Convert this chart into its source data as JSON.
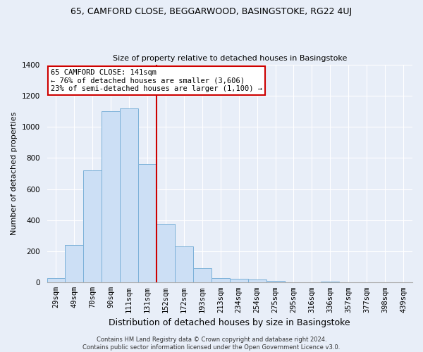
{
  "title_line1": "65, CAMFORD CLOSE, BEGGARWOOD, BASINGSTOKE, RG22 4UJ",
  "title_line2": "Size of property relative to detached houses in Basingstoke",
  "xlabel": "Distribution of detached houses by size in Basingstoke",
  "ylabel": "Number of detached properties",
  "bin_labels": [
    "29sqm",
    "49sqm",
    "70sqm",
    "90sqm",
    "111sqm",
    "131sqm",
    "152sqm",
    "172sqm",
    "193sqm",
    "213sqm",
    "234sqm",
    "254sqm",
    "275sqm",
    "295sqm",
    "316sqm",
    "336sqm",
    "357sqm",
    "377sqm",
    "398sqm",
    "439sqm"
  ],
  "bar_values": [
    30,
    240,
    720,
    1100,
    1120,
    760,
    375,
    230,
    90,
    30,
    25,
    20,
    10,
    0,
    0,
    5,
    0,
    0,
    0,
    0
  ],
  "bar_color": "#ccdff5",
  "bar_edge_color": "#7ab0d8",
  "vline_color": "#cc0000",
  "annotation_text": "65 CAMFORD CLOSE: 141sqm\n← 76% of detached houses are smaller (3,606)\n23% of semi-detached houses are larger (1,100) →",
  "annotation_box_color": "white",
  "annotation_box_edge": "#cc0000",
  "ylim": [
    0,
    1400
  ],
  "yticks": [
    0,
    200,
    400,
    600,
    800,
    1000,
    1200,
    1400
  ],
  "footer_line1": "Contains HM Land Registry data © Crown copyright and database right 2024.",
  "footer_line2": "Contains public sector information licensed under the Open Government Licence v3.0.",
  "bg_color": "#e8eef8",
  "grid_color": "#ffffff",
  "title1_fontsize": 9,
  "title2_fontsize": 8,
  "ylabel_fontsize": 8,
  "xlabel_fontsize": 9,
  "tick_fontsize": 7.5,
  "annot_fontsize": 7.5,
  "footer_fontsize": 6
}
